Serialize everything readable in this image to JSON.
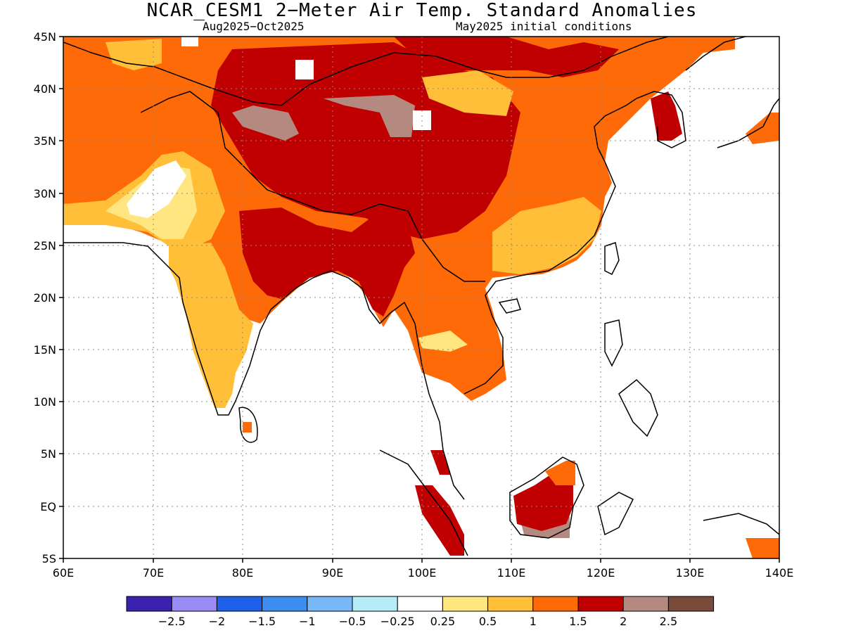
{
  "title": "NCAR_CESM1 2−Meter Air Temp. Standard Anomalies",
  "subtitle_left": "Aug2025−Oct2025",
  "subtitle_right": "May2025 initial conditions",
  "lat_labels": [
    "45N",
    "40N",
    "35N",
    "30N",
    "25N",
    "20N",
    "15N",
    "10N",
    "5N",
    "EQ",
    "5S"
  ],
  "lon_labels": [
    "60E",
    "70E",
    "80E",
    "90E",
    "100E",
    "110E",
    "120E",
    "130E",
    "140E"
  ],
  "colorbar": {
    "colors": [
      "#3a21b0",
      "#9a8cf5",
      "#1e60ea",
      "#3b8ef0",
      "#78b8f6",
      "#b6ecf8",
      "#ffffff",
      "#ffe680",
      "#ffbf38",
      "#ff6a08",
      "#c00000",
      "#b48a80",
      "#7a4a3a"
    ],
    "labels": [
      "−2.5",
      "−2",
      "−1.5",
      "−1",
      "−0.5",
      "−0.25",
      "0.25",
      "0.5",
      "1",
      "1.5",
      "2",
      "2.5"
    ]
  },
  "legend_classes": {
    "white": "#ffffff",
    "light_yellow": "#ffe680",
    "yellow": "#ffbf38",
    "orange": "#ff6a08",
    "red": "#c00000",
    "brown": "#b48a80"
  }
}
